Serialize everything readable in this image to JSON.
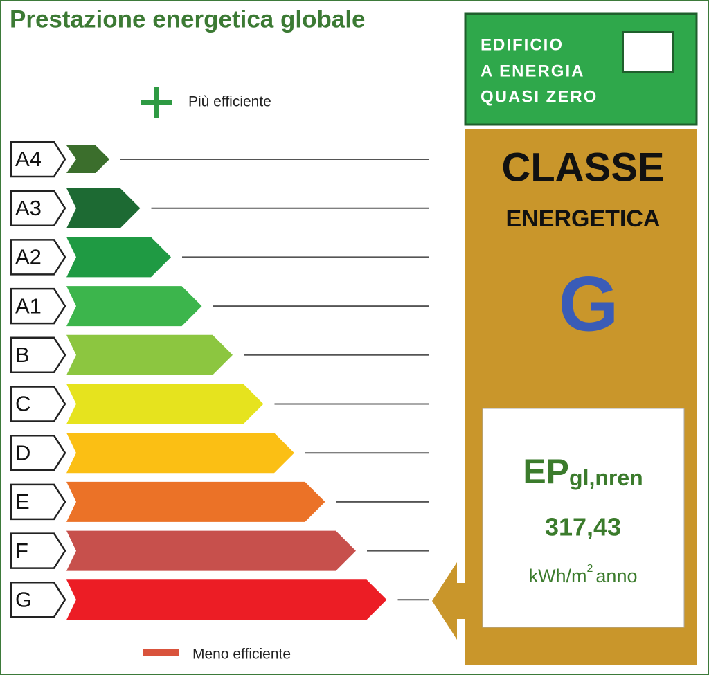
{
  "header": {
    "title": "Prestazione energetica globale"
  },
  "scale": {
    "top_label": "Più efficiente",
    "bottom_label": "Meno efficiente",
    "classes": [
      {
        "label": "A4",
        "color": "#3b6e2c"
      },
      {
        "label": "A3",
        "color": "#1d6a33"
      },
      {
        "label": "A2",
        "color": "#1f9a43"
      },
      {
        "label": "A1",
        "color": "#3cb54c"
      },
      {
        "label": "B",
        "color": "#8cc640"
      },
      {
        "label": "C",
        "color": "#e6e31e"
      },
      {
        "label": "D",
        "color": "#fbbf14"
      },
      {
        "label": "E",
        "color": "#eb7227"
      },
      {
        "label": "F",
        "color": "#c7504c"
      },
      {
        "label": "G",
        "color": "#ec1d25"
      }
    ]
  },
  "nzeb": {
    "lines": [
      "EDIFICIO",
      "A ENERGIA",
      "QUASI ZERO"
    ]
  },
  "result": {
    "heading": "CLASSE",
    "subheading": "ENERGETICA",
    "class": "G",
    "indicator": "EP",
    "indicator_sub": "gl,nren",
    "value": "317,43",
    "unit": "kWh/m",
    "unit_sup": "2",
    "unit_tail": "anno"
  }
}
